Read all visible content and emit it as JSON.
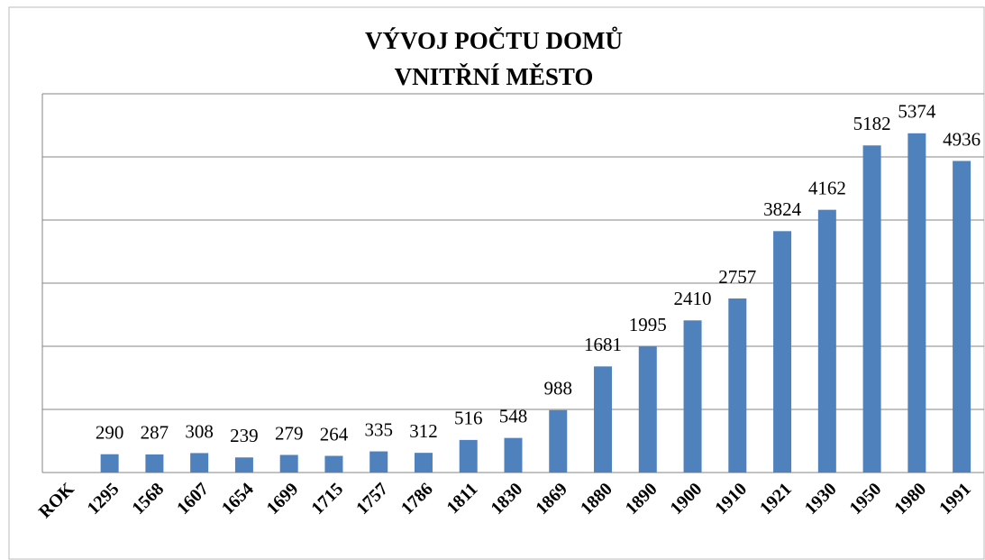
{
  "chart_data": {
    "type": "bar",
    "title": [
      "VÝVOJ POČTU DOMŮ",
      "VNITŘNÍ MĚSTO"
    ],
    "categories": [
      "ROK",
      "1295",
      "1568",
      "1607",
      "1654",
      "1699",
      "1715",
      "1757",
      "1786",
      "1811",
      "1830",
      "1869",
      "1880",
      "1890",
      "1900",
      "1910",
      "1921",
      "1930",
      "1950",
      "1980",
      "1991"
    ],
    "values": [
      null,
      290,
      287,
      308,
      239,
      279,
      264,
      335,
      312,
      516,
      548,
      988,
      1681,
      1995,
      2410,
      2757,
      3824,
      4162,
      5182,
      5374,
      4936
    ],
    "color": "#4f81bd",
    "ylim": [
      0,
      6000
    ],
    "yticks": [
      0,
      1000,
      2000,
      3000,
      4000,
      5000,
      6000
    ],
    "grid": true
  }
}
